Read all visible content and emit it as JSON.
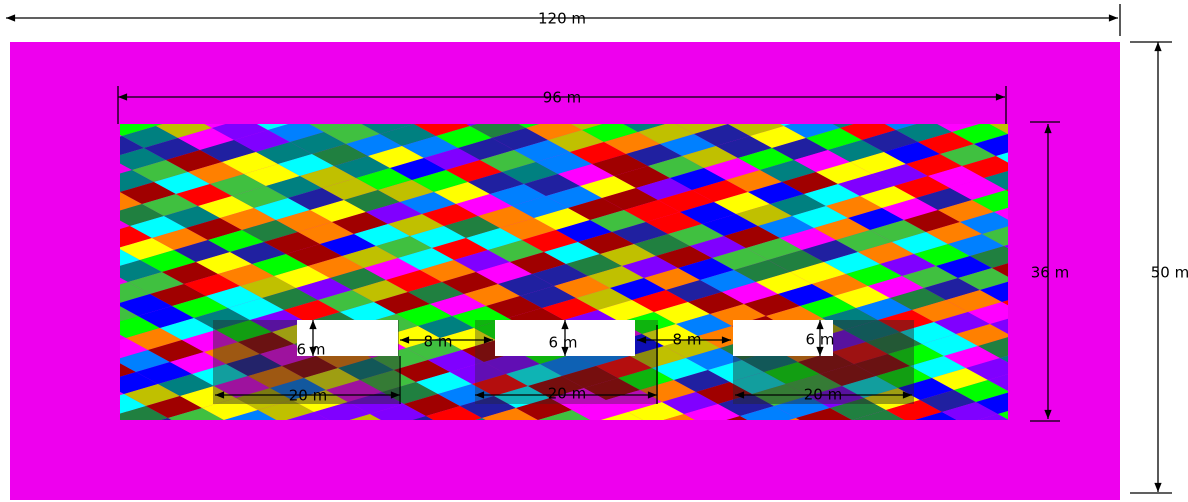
{
  "dimensions": {
    "model_width": "120 m",
    "inner_width": "96 m",
    "model_height": "50 m",
    "inner_height": "36 m",
    "openings": [
      {
        "height": "6 m",
        "width": "20 m"
      },
      {
        "height": "6 m",
        "width": "20 m"
      },
      {
        "height": "6 m",
        "width": "20 m"
      }
    ],
    "spacings": [
      "8 m",
      "8 m"
    ]
  }
}
